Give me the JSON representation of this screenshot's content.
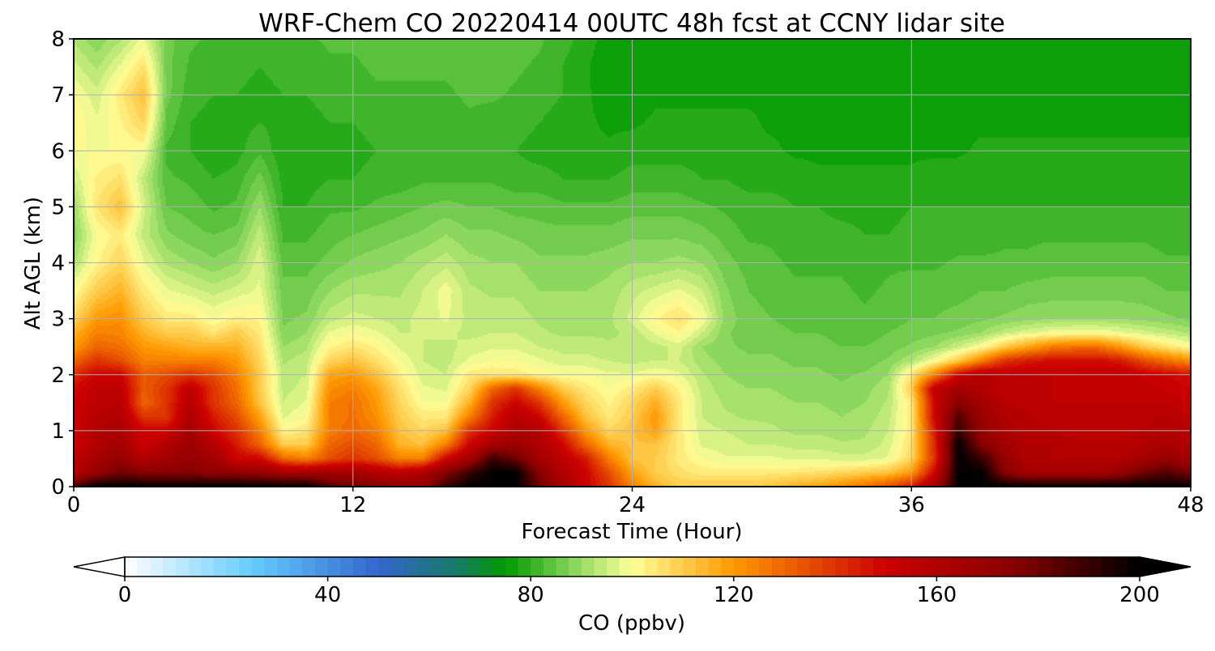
{
  "chart_data": {
    "type": "heatmap",
    "title": "WRF-Chem CO  20220414 00UTC 48h fcst at CCNY lidar site",
    "xlabel": "Forecast Time (Hour)",
    "ylabel": "Alt AGL (km)",
    "xlim": [
      0,
      48
    ],
    "ylim": [
      0,
      8
    ],
    "x_ticks": [
      0,
      12,
      24,
      36,
      48
    ],
    "y_ticks": [
      0,
      1,
      2,
      3,
      4,
      5,
      6,
      7,
      8
    ],
    "grid": true,
    "colorbar": {
      "label": "CO  (ppbv)",
      "min": 0,
      "max": 200,
      "ticks": [
        0,
        40,
        80,
        120,
        160,
        200
      ],
      "extend": "both",
      "orientation": "horizontal",
      "stops": [
        {
          "value": 0,
          "color": "#ffffff"
        },
        {
          "value": 25,
          "color": "#66ccff"
        },
        {
          "value": 50,
          "color": "#3366cc"
        },
        {
          "value": 65,
          "color": "#1a7a6a"
        },
        {
          "value": 75,
          "color": "#009900"
        },
        {
          "value": 90,
          "color": "#99dd66"
        },
        {
          "value": 100,
          "color": "#ffff99"
        },
        {
          "value": 120,
          "color": "#ff9900"
        },
        {
          "value": 150,
          "color": "#cc0000"
        },
        {
          "value": 175,
          "color": "#880000"
        },
        {
          "value": 200,
          "color": "#000000"
        }
      ]
    },
    "grid_x": [
      0,
      1,
      2,
      3,
      4,
      5,
      6,
      7,
      8,
      9,
      10,
      11,
      12,
      13,
      14,
      15,
      16,
      17,
      18,
      19,
      20,
      21,
      22,
      23,
      24,
      25,
      26,
      27,
      28,
      29,
      30,
      31,
      32,
      33,
      34,
      35,
      36,
      37,
      38,
      39,
      40,
      41,
      42,
      43,
      44,
      45,
      46,
      47,
      48
    ],
    "grid_y": [
      0,
      0.25,
      0.5,
      0.75,
      1,
      1.25,
      1.5,
      1.75,
      2,
      2.25,
      2.5,
      2.75,
      3,
      3.5,
      4,
      4.5,
      5,
      5.5,
      6,
      6.5,
      7,
      7.5,
      8
    ],
    "values": [
      [
        185,
        200,
        200,
        200,
        200,
        200,
        200,
        200,
        200,
        200,
        200,
        185,
        180,
        175,
        172,
        170,
        190,
        200,
        200,
        200,
        180,
        165,
        150,
        140,
        125,
        115,
        110,
        110,
        110,
        110,
        112,
        115,
        118,
        122,
        128,
        135,
        145,
        165,
        200,
        200,
        200,
        200,
        200,
        200,
        200,
        200,
        200,
        200,
        200
      ],
      [
        160,
        170,
        180,
        175,
        175,
        175,
        172,
        172,
        170,
        165,
        165,
        165,
        165,
        160,
        155,
        162,
        175,
        190,
        200,
        200,
        175,
        160,
        150,
        135,
        118,
        110,
        106,
        104,
        104,
        104,
        104,
        105,
        106,
        108,
        110,
        112,
        120,
        150,
        200,
        200,
        175,
        165,
        165,
        165,
        165,
        170,
        180,
        185,
        178
      ],
      [
        155,
        165,
        170,
        160,
        165,
        170,
        165,
        150,
        150,
        130,
        125,
        135,
        140,
        135,
        125,
        125,
        150,
        165,
        190,
        180,
        165,
        155,
        145,
        125,
        112,
        110,
        104,
        100,
        98,
        98,
        98,
        97,
        97,
        96,
        96,
        98,
        108,
        140,
        200,
        190,
        170,
        160,
        160,
        160,
        160,
        160,
        165,
        170,
        165
      ],
      [
        150,
        160,
        165,
        150,
        160,
        168,
        158,
        145,
        130,
        110,
        110,
        130,
        135,
        130,
        115,
        112,
        125,
        150,
        165,
        168,
        160,
        150,
        130,
        115,
        112,
        112,
        104,
        97,
        96,
        95,
        95,
        94,
        94,
        93,
        93,
        96,
        106,
        142,
        200,
        175,
        165,
        160,
        160,
        158,
        158,
        158,
        160,
        162,
        160
      ],
      [
        150,
        160,
        162,
        150,
        150,
        165,
        150,
        140,
        125,
        102,
        105,
        125,
        130,
        125,
        112,
        108,
        112,
        140,
        150,
        162,
        160,
        140,
        120,
        108,
        112,
        118,
        104,
        96,
        95,
        94,
        93,
        92,
        92,
        91,
        92,
        95,
        104,
        145,
        190,
        170,
        162,
        158,
        158,
        156,
        156,
        156,
        158,
        160,
        158
      ],
      [
        150,
        158,
        160,
        140,
        140,
        162,
        145,
        135,
        118,
        97,
        100,
        125,
        128,
        122,
        110,
        104,
        104,
        125,
        145,
        158,
        150,
        130,
        112,
        104,
        110,
        120,
        104,
        95,
        93,
        92,
        92,
        91,
        91,
        90,
        91,
        94,
        104,
        150,
        185,
        168,
        160,
        158,
        156,
        155,
        155,
        155,
        156,
        158,
        155
      ],
      [
        150,
        155,
        158,
        130,
        140,
        158,
        140,
        130,
        112,
        95,
        98,
        125,
        128,
        120,
        108,
        100,
        100,
        115,
        140,
        150,
        140,
        120,
        108,
        102,
        108,
        116,
        104,
        95,
        92,
        91,
        91,
        90,
        90,
        89,
        90,
        93,
        104,
        150,
        175,
        165,
        158,
        156,
        155,
        155,
        155,
        155,
        155,
        155,
        152
      ],
      [
        148,
        155,
        155,
        132,
        140,
        155,
        140,
        128,
        110,
        94,
        96,
        122,
        125,
        118,
        106,
        98,
        97,
        108,
        130,
        140,
        125,
        110,
        104,
        100,
        104,
        110,
        102,
        94,
        91,
        90,
        90,
        89,
        89,
        88,
        89,
        92,
        110,
        155,
        165,
        160,
        155,
        155,
        155,
        154,
        154,
        154,
        154,
        152,
        150
      ],
      [
        142,
        150,
        150,
        132,
        135,
        140,
        135,
        125,
        110,
        94,
        95,
        118,
        120,
        112,
        103,
        96,
        95,
        104,
        105,
        104,
        102,
        100,
        100,
        98,
        98,
        100,
        98,
        93,
        90,
        89,
        89,
        88,
        88,
        87,
        88,
        90,
        105,
        125,
        150,
        160,
        155,
        155,
        155,
        155,
        155,
        155,
        152,
        150,
        147
      ],
      [
        130,
        140,
        135,
        125,
        125,
        125,
        125,
        120,
        108,
        92,
        94,
        108,
        112,
        106,
        100,
        95,
        94,
        98,
        100,
        100,
        98,
        96,
        96,
        95,
        94,
        95,
        95,
        91,
        89,
        88,
        88,
        87,
        87,
        86,
        86,
        88,
        92,
        100,
        110,
        125,
        140,
        145,
        148,
        148,
        148,
        145,
        135,
        128,
        122
      ],
      [
        120,
        130,
        128,
        120,
        118,
        115,
        115,
        115,
        106,
        90,
        92,
        102,
        105,
        102,
        97,
        95,
        94,
        96,
        97,
        97,
        95,
        94,
        94,
        93,
        93,
        94,
        96,
        90,
        88,
        87,
        87,
        86,
        86,
        85,
        85,
        86,
        88,
        90,
        95,
        100,
        110,
        118,
        125,
        128,
        128,
        120,
        110,
        105,
        100
      ],
      [
        115,
        125,
        124,
        115,
        110,
        110,
        105,
        110,
        104,
        88,
        90,
        98,
        100,
        98,
        95,
        95,
        96,
        94,
        95,
        95,
        93,
        92,
        92,
        92,
        93,
        98,
        102,
        95,
        88,
        86,
        86,
        85,
        85,
        84,
        84,
        85,
        86,
        87,
        88,
        90,
        94,
        97,
        99,
        100,
        100,
        98,
        96,
        94,
        92
      ],
      [
        108,
        120,
        122,
        110,
        104,
        104,
        100,
        103,
        102,
        87,
        88,
        94,
        96,
        95,
        94,
        96,
        98,
        94,
        94,
        94,
        92,
        91,
        91,
        92,
        96,
        102,
        106,
        100,
        89,
        86,
        85,
        84,
        84,
        84,
        83,
        84,
        85,
        85,
        86,
        87,
        88,
        89,
        90,
        90,
        90,
        90,
        89,
        88,
        87
      ],
      [
        100,
        110,
        115,
        104,
        98,
        96,
        94,
        96,
        98,
        86,
        86,
        90,
        92,
        92,
        92,
        95,
        99,
        93,
        92,
        92,
        90,
        90,
        90,
        91,
        94,
        96,
        98,
        95,
        88,
        85,
        84,
        83,
        83,
        83,
        82,
        83,
        84,
        84,
        84,
        85,
        85,
        86,
        86,
        86,
        86,
        86,
        86,
        85,
        85
      ],
      [
        92,
        102,
        108,
        98,
        92,
        90,
        88,
        90,
        97,
        84,
        84,
        86,
        88,
        89,
        90,
        92,
        94,
        91,
        90,
        90,
        88,
        88,
        88,
        89,
        90,
        90,
        91,
        90,
        86,
        84,
        83,
        82,
        82,
        82,
        81,
        82,
        82,
        82,
        83,
        83,
        83,
        83,
        84,
        84,
        84,
        84,
        84,
        83,
        83
      ],
      [
        88,
        100,
        104,
        94,
        88,
        86,
        85,
        86,
        94,
        82,
        82,
        84,
        85,
        86,
        87,
        88,
        90,
        88,
        88,
        87,
        86,
        86,
        86,
        86,
        87,
        87,
        87,
        86,
        84,
        82,
        82,
        81,
        81,
        81,
        80,
        80,
        81,
        81,
        81,
        81,
        82,
        82,
        82,
        82,
        82,
        82,
        82,
        81,
        81
      ],
      [
        90,
        105,
        112,
        96,
        85,
        84,
        82,
        83,
        90,
        80,
        80,
        82,
        82,
        83,
        84,
        85,
        86,
        85,
        85,
        84,
        84,
        83,
        83,
        83,
        84,
        84,
        84,
        83,
        82,
        81,
        81,
        80,
        80,
        79,
        79,
        79,
        80,
        80,
        80,
        80,
        80,
        80,
        80,
        80,
        80,
        80,
        80,
        80,
        80
      ],
      [
        95,
        103,
        106,
        94,
        83,
        82,
        80,
        81,
        86,
        79,
        79,
        80,
        80,
        81,
        81,
        82,
        82,
        82,
        82,
        81,
        81,
        80,
        80,
        80,
        81,
        81,
        81,
        80,
        80,
        79,
        79,
        79,
        78,
        78,
        78,
        78,
        78,
        79,
        79,
        79,
        79,
        79,
        79,
        79,
        79,
        79,
        79,
        79,
        79
      ],
      [
        100,
        100,
        100,
        100,
        82,
        80,
        78,
        79,
        82,
        78,
        78,
        79,
        79,
        80,
        80,
        80,
        80,
        80,
        80,
        80,
        79,
        79,
        78,
        78,
        79,
        79,
        79,
        79,
        78,
        78,
        78,
        77,
        77,
        77,
        77,
        77,
        77,
        77,
        77,
        78,
        78,
        78,
        78,
        78,
        78,
        78,
        78,
        78,
        78
      ],
      [
        102,
        98,
        102,
        108,
        84,
        80,
        79,
        79,
        80,
        79,
        79,
        80,
        80,
        81,
        81,
        81,
        81,
        82,
        81,
        81,
        80,
        79,
        78,
        77,
        77,
        78,
        78,
        78,
        78,
        78,
        77,
        77,
        77,
        76,
        76,
        76,
        76,
        76,
        77,
        77,
        77,
        77,
        77,
        77,
        77,
        77,
        77,
        77,
        77
      ],
      [
        100,
        96,
        104,
        112,
        86,
        81,
        80,
        80,
        79,
        80,
        80,
        81,
        81,
        82,
        82,
        82,
        82,
        83,
        83,
        82,
        81,
        80,
        78,
        76,
        76,
        77,
        77,
        77,
        77,
        77,
        77,
        76,
        76,
        76,
        76,
        76,
        76,
        76,
        76,
        76,
        76,
        76,
        76,
        76,
        76,
        76,
        76,
        76,
        76
      ],
      [
        96,
        92,
        98,
        106,
        86,
        82,
        81,
        81,
        80,
        81,
        81,
        82,
        82,
        83,
        83,
        83,
        83,
        84,
        84,
        83,
        82,
        80,
        78,
        75,
        75,
        76,
        76,
        77,
        77,
        77,
        76,
        76,
        76,
        76,
        76,
        76,
        76,
        76,
        76,
        76,
        76,
        76,
        76,
        76,
        76,
        76,
        76,
        76,
        76
      ],
      [
        92,
        88,
        92,
        98,
        86,
        83,
        82,
        82,
        81,
        82,
        82,
        83,
        83,
        84,
        84,
        84,
        84,
        85,
        85,
        84,
        83,
        81,
        79,
        76,
        76,
        77,
        77,
        77,
        77,
        76,
        76,
        76,
        76,
        76,
        76,
        76,
        76,
        76,
        76,
        76,
        76,
        76,
        76,
        76,
        76,
        76,
        76,
        76,
        76
      ]
    ]
  }
}
